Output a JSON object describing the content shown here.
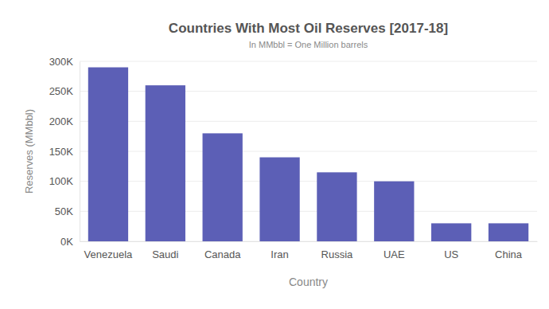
{
  "chart_data": {
    "type": "bar",
    "title": "Countries With Most Oil Reserves [2017-18]",
    "subtitle": "In MMbbl = One Million barrels",
    "x_label": "Country",
    "y_label": "Reserves (MMbbl)",
    "categories": [
      "Venezuela",
      "Saudi",
      "Canada",
      "Iran",
      "Russia",
      "UAE",
      "US",
      "China"
    ],
    "values": [
      290000,
      260000,
      180000,
      140000,
      115000,
      100000,
      30000,
      30000
    ],
    "color": "#5c5fb6",
    "ylim": [
      0,
      300000
    ],
    "yticks": [
      {
        "value": 0,
        "label": "0K"
      },
      {
        "value": 50000,
        "label": "50K"
      },
      {
        "value": 100000,
        "label": "100K"
      },
      {
        "value": 150000,
        "label": "150K"
      },
      {
        "value": 200000,
        "label": "200K"
      },
      {
        "value": 250000,
        "label": "250K"
      },
      {
        "value": 300000,
        "label": "300K"
      }
    ],
    "grid": true
  }
}
